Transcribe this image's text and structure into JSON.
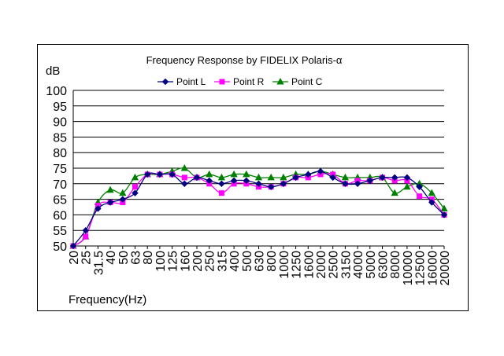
{
  "chart_data": {
    "type": "line",
    "title": "Frequency Response by FIDELIX Polaris-α",
    "xlabel": "Frequency(Hz)",
    "ylabel": "dB",
    "ylim": [
      50,
      100
    ],
    "yticks": [
      "50",
      "55",
      "60",
      "65",
      "70",
      "75",
      "80",
      "85",
      "90",
      "95",
      "100"
    ],
    "grid": true,
    "legend": "top",
    "categories": [
      "20",
      "25",
      "31.5",
      "40",
      "50",
      "63",
      "80",
      "100",
      "125",
      "160",
      "200",
      "250",
      "315",
      "400",
      "500",
      "630",
      "800",
      "1000",
      "1250",
      "1600",
      "2000",
      "2500",
      "3150",
      "4000",
      "5000",
      "6300",
      "8000",
      "10000",
      "12500",
      "16000",
      "20000"
    ],
    "series": [
      {
        "name": "Point L",
        "color": "#000080",
        "marker": "diamond",
        "values": [
          50,
          55,
          62,
          64,
          65,
          67,
          73,
          73,
          73,
          70,
          72,
          71,
          70,
          71,
          71,
          70,
          69,
          70,
          72,
          73,
          74,
          72,
          70,
          70,
          71,
          72,
          72,
          72,
          69,
          64,
          60
        ]
      },
      {
        "name": "Point R",
        "color": "#ff00ff",
        "marker": "square",
        "values": [
          50,
          53,
          63,
          64,
          64,
          69,
          73,
          73,
          73,
          72,
          72,
          70,
          67,
          70,
          70,
          69,
          69,
          70,
          72,
          72,
          73,
          73,
          70,
          71,
          71,
          72,
          71,
          71,
          66,
          65,
          60
        ]
      },
      {
        "name": "Point C",
        "color": "#008000",
        "marker": "triangle",
        "values": [
          50,
          53,
          64,
          68,
          67,
          72,
          73,
          73,
          74,
          75,
          72,
          73,
          72,
          73,
          73,
          72,
          72,
          72,
          73,
          73,
          74,
          73,
          72,
          72,
          72,
          72,
          67,
          69,
          70,
          67,
          62
        ]
      }
    ]
  }
}
